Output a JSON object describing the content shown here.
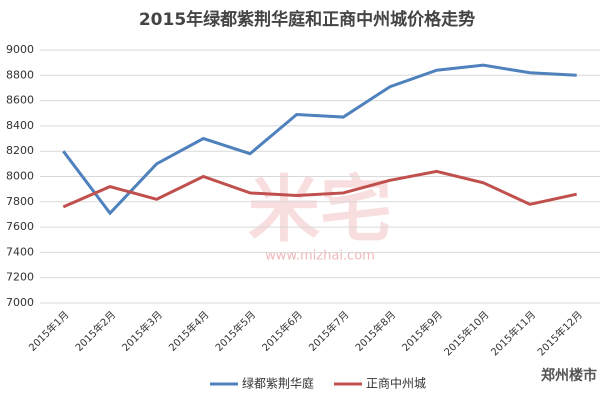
{
  "chart_data": {
    "type": "line",
    "title": "2015年绿都紫荆华庭和正商中州城价格走势",
    "categories": [
      "2015年1月",
      "2015年2月",
      "2015年3月",
      "2015年4月",
      "2015年5月",
      "2015年6月",
      "2015年7月",
      "2015年8月",
      "2015年9月",
      "2015年10月",
      "2015年11月",
      "2015年12月"
    ],
    "series": [
      {
        "name": "绿都紫荆华庭",
        "color": "#4f81bd",
        "values": [
          8200,
          7710,
          8100,
          8300,
          8180,
          8490,
          8470,
          8710,
          8840,
          8880,
          8820,
          8800
        ]
      },
      {
        "name": "正商中州城",
        "color": "#c0504d",
        "values": [
          7760,
          7920,
          7820,
          8000,
          7870,
          7850,
          7870,
          7970,
          8040,
          7950,
          7780,
          7860
        ]
      }
    ],
    "ylim": [
      7000,
      9000
    ],
    "yticks": [
      7000,
      7200,
      7400,
      7600,
      7800,
      8000,
      8200,
      8400,
      8600,
      8800,
      9000
    ],
    "grid": true,
    "legend": "bottom",
    "watermark": "米宅",
    "watermark_url": "www.mizhai.com",
    "source": "郑州楼市"
  }
}
